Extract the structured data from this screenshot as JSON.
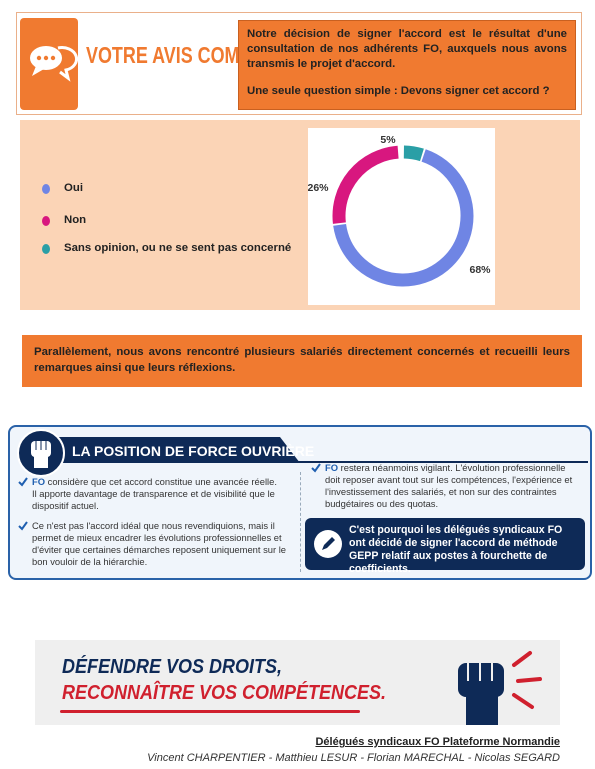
{
  "header": {
    "badge": "VOTRE AVIS COMPTE",
    "intro": "Notre décision de signer l'accord est le résultat d'une consultation de nos adhérents FO, auxquels nous avons transmis le projet d'accord.",
    "question": "Une seule question simple : Devons signer cet accord ?"
  },
  "chart_data": {
    "type": "donut",
    "categories": [
      "Oui",
      "Non",
      "Sans opinion, ou ne se sent pas concerné"
    ],
    "values": [
      68,
      26,
      5
    ],
    "value_labels": [
      "68%",
      "26%",
      "5%"
    ],
    "colors": [
      "#6f85e4",
      "#d8177f",
      "#2a9fa6"
    ]
  },
  "paragraph": "Parallèlement, nous avons rencontré plusieurs salariés directement concernés et recueilli leurs remarques ainsi que leurs réflexions.",
  "position": {
    "title": "LA POSITION DE FORCE OUVRIÈRE",
    "left": [
      {
        "lead": "FO",
        "text": "considère que cet accord constitue une avancée réelle. Il apporte davantage de transparence et de visibilité que le dispositif actuel."
      },
      {
        "lead": "",
        "text": "Ce n'est pas l'accord idéal que nous revendiquions, mais il permet de mieux encadrer les évolutions professionnelles et d'éviter que certaines démarches reposent uniquement sur le bon vouloir de la hiérarchie."
      }
    ],
    "right": {
      "lead": "FO",
      "text": "restera néanmoins vigilant. L'évolution professionnelle doit reposer avant tout sur les compétences, l'expérience et l'investissement des salariés, et non sur des contraintes budgétaires ou des quotas."
    },
    "conclusion": {
      "before": "C'est pourquoi les délégués syndicaux",
      "lead": "FO",
      "after": "ont décidé de signer l'accord de méthode GEPP relatif aux postes à fourchette de coefficients."
    }
  },
  "banner": {
    "line1": "DÉFENDRE VOS DROITS,",
    "line2": "RECONNAÎTRE VOS COMPÉTENCES."
  },
  "footer": {
    "title": "Délégués syndicaux FO Plateforme Normandie",
    "names": "Vincent CHARPENTIER - Matthieu LESUR - Florian MARECHAL - Nicolas SEGARD"
  }
}
